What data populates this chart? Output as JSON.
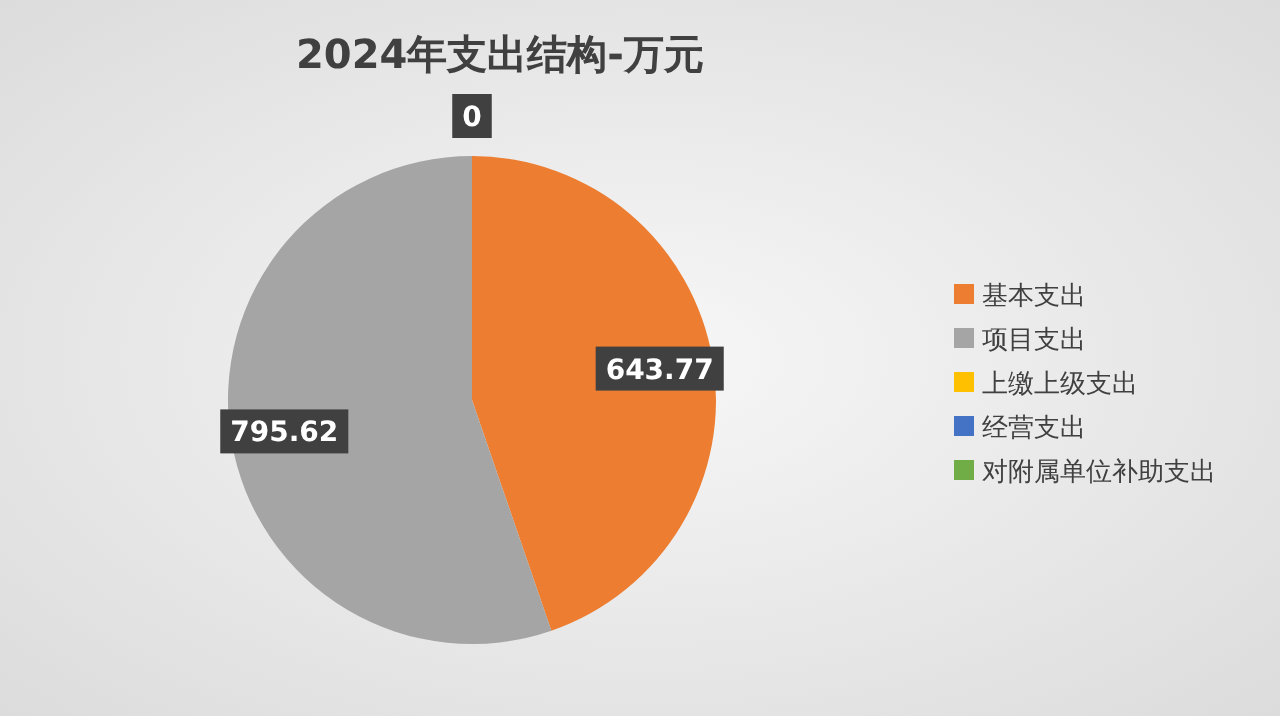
{
  "chart_data": {
    "type": "pie",
    "title": "2024年支出结构-万元",
    "categories": [
      "基本支出",
      "项目支出",
      "上缴上级支出",
      "经营支出",
      "对附属单位补助支出"
    ],
    "values": [
      643.77,
      795.62,
      0,
      0,
      0
    ],
    "colors": [
      "#ed7d31",
      "#a5a5a5",
      "#ffc000",
      "#4472c4",
      "#70ad47"
    ],
    "value_labels": [
      "643.77",
      "795.62",
      "0",
      null,
      null
    ],
    "legend": "right"
  }
}
